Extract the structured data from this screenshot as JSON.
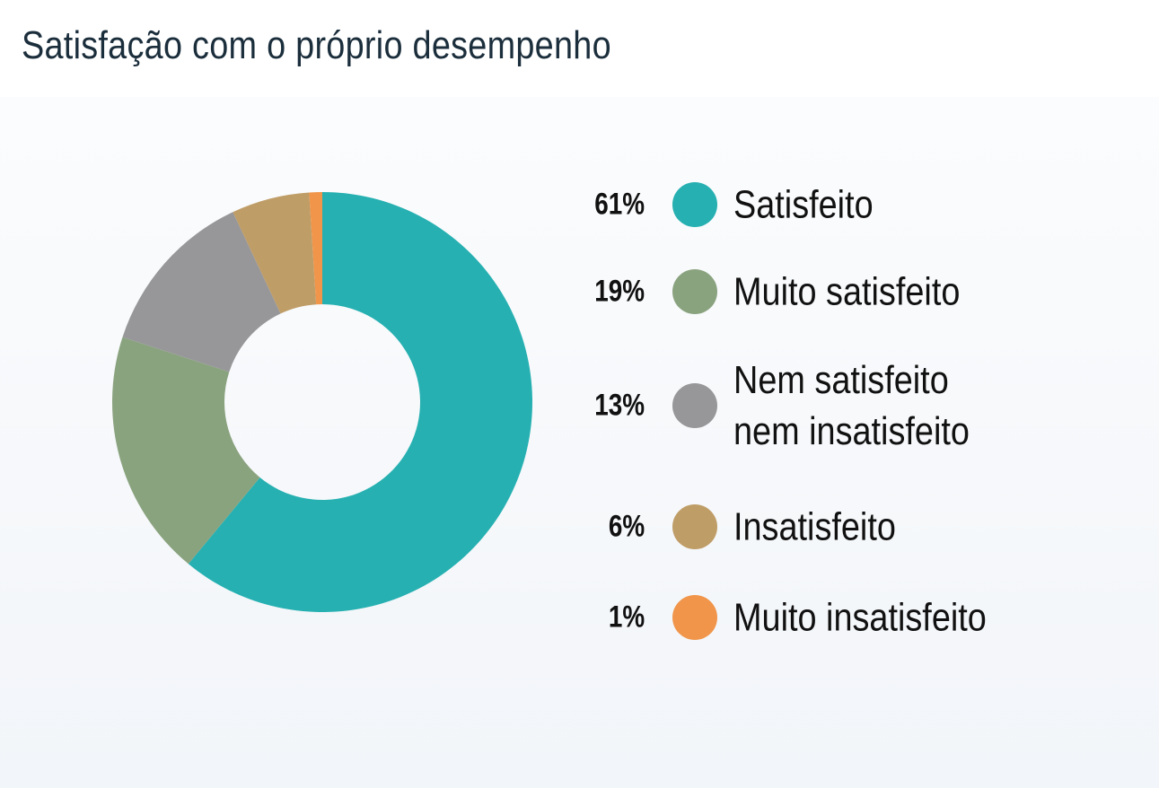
{
  "title": "Satisfação com o próprio desempenho",
  "chart_data": {
    "type": "pie",
    "donut": true,
    "title": "Satisfação com o próprio desempenho",
    "legend_position": "right",
    "categories": [
      "Satisfeito",
      "Muito satisfeito",
      "Nem satisfeito\nnem insatisfeito",
      "Insatisfeito",
      "Muito insatisfeito"
    ],
    "values": [
      61,
      19,
      13,
      6,
      1
    ],
    "value_labels": [
      "61%",
      "19%",
      "13%",
      "6%",
      "1%"
    ],
    "colors": [
      "#26b0b1",
      "#8aa37f",
      "#979799",
      "#bf9d67",
      "#f0954a"
    ]
  }
}
